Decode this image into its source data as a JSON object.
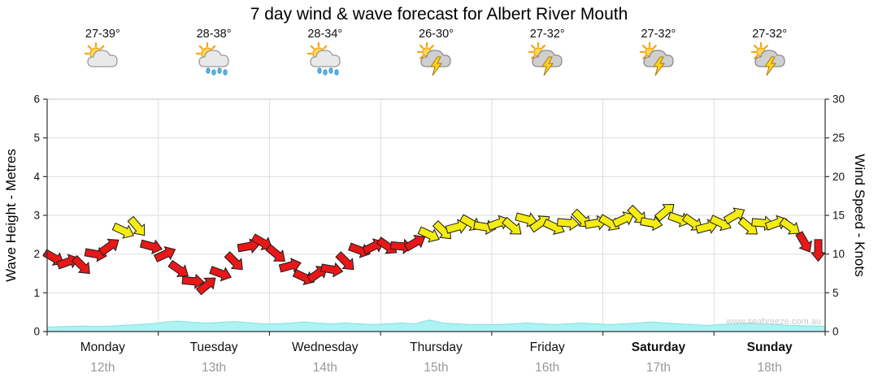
{
  "title": "7 day wind & wave forecast for Albert River Mouth",
  "watermark": "www.seabreeze.com.au",
  "days": [
    {
      "name": "Monday",
      "date": "12th",
      "temp": "27-39°",
      "icon": "sun-cloud",
      "weekend": false
    },
    {
      "name": "Tuesday",
      "date": "13th",
      "temp": "28-38°",
      "icon": "sun-cloud-rain",
      "weekend": false
    },
    {
      "name": "Wednesday",
      "date": "14th",
      "temp": "28-34°",
      "icon": "sun-cloud-rain",
      "weekend": false
    },
    {
      "name": "Thursday",
      "date": "15th",
      "temp": "26-30°",
      "icon": "storm",
      "weekend": false
    },
    {
      "name": "Friday",
      "date": "16th",
      "temp": "27-32°",
      "icon": "storm",
      "weekend": false
    },
    {
      "name": "Saturday",
      "date": "17th",
      "temp": "27-32°",
      "icon": "storm",
      "weekend": true
    },
    {
      "name": "Sunday",
      "date": "18th",
      "temp": "27-32°",
      "icon": "storm",
      "weekend": true
    }
  ],
  "axes": {
    "left_title": "Wave Height - Metres",
    "right_title": "Wind Speed - Knots",
    "left_ticks": [
      0,
      1,
      2,
      3,
      4,
      5,
      6
    ],
    "right_ticks": [
      0,
      5,
      10,
      15,
      20,
      25,
      30
    ],
    "left_range": [
      0,
      6
    ],
    "right_range": [
      0,
      30
    ]
  },
  "chart_data": {
    "type": "combo",
    "subtypes": [
      "wind-arrow-scatter",
      "area"
    ],
    "categories": [
      "Monday 12th",
      "Tuesday 13th",
      "Wednesday 14th",
      "Thursday 15th",
      "Friday 16th",
      "Saturday 17th",
      "Sunday 18th"
    ],
    "points_per_day": 8,
    "x_unit": "3-hourly steps across 7 days",
    "ylim_left_metres": [
      0,
      6
    ],
    "ylim_right_knots": [
      0,
      30
    ],
    "grid": true,
    "legend": "none",
    "series": [
      {
        "name": "Wind Speed",
        "axis": "right",
        "units": "knots",
        "style": "wind-arrows",
        "color_rule": "red below 12 knots, yellow at 12 knots and above",
        "colors": {
          "red": "#e81818",
          "yellow": "#f5ec12"
        },
        "knots": [
          9.5,
          9,
          8.5,
          10,
          11,
          13,
          13.5,
          11,
          10,
          8,
          6.5,
          6,
          7.5,
          9,
          11,
          11.5,
          10,
          8.5,
          7,
          7.5,
          8,
          9,
          10.5,
          11,
          11,
          11,
          11.5,
          12.5,
          13,
          13.5,
          14,
          13.5,
          14,
          13.5,
          14.5,
          14,
          13.5,
          14,
          14.5,
          14,
          14,
          14.5,
          15,
          14,
          15.5,
          14.5,
          14,
          13.5,
          14,
          15,
          13.5,
          14,
          14,
          13.5,
          11.5,
          10.5
        ],
        "directions_deg": [
          30,
          -20,
          45,
          10,
          -35,
          25,
          50,
          15,
          -25,
          35,
          5,
          -40,
          20,
          45,
          -10,
          30,
          40,
          -15,
          25,
          -35,
          10,
          45,
          20,
          -25,
          35,
          5,
          -30,
          25,
          45,
          -15,
          30,
          10,
          -20,
          40,
          15,
          -35,
          25,
          5,
          45,
          -10,
          30,
          -25,
          45,
          10,
          -40,
          20,
          35,
          -15,
          25,
          -30,
          40,
          5,
          -20,
          35,
          60,
          90
        ]
      },
      {
        "name": "Wave Height",
        "axis": "left",
        "units": "metres",
        "style": "area",
        "fill": "#aef2f2",
        "stroke": "#7fe3e3",
        "metres": [
          0.12,
          0.13,
          0.14,
          0.13,
          0.14,
          0.16,
          0.18,
          0.2,
          0.25,
          0.27,
          0.24,
          0.22,
          0.24,
          0.26,
          0.23,
          0.2,
          0.2,
          0.22,
          0.25,
          0.22,
          0.2,
          0.22,
          0.2,
          0.18,
          0.2,
          0.22,
          0.2,
          0.3,
          0.22,
          0.2,
          0.18,
          0.18,
          0.18,
          0.2,
          0.22,
          0.2,
          0.18,
          0.2,
          0.22,
          0.2,
          0.18,
          0.2,
          0.22,
          0.25,
          0.22,
          0.2,
          0.18,
          0.16,
          0.18,
          0.2,
          0.22,
          0.2,
          0.18,
          0.16,
          0.15,
          0.14
        ]
      }
    ]
  }
}
